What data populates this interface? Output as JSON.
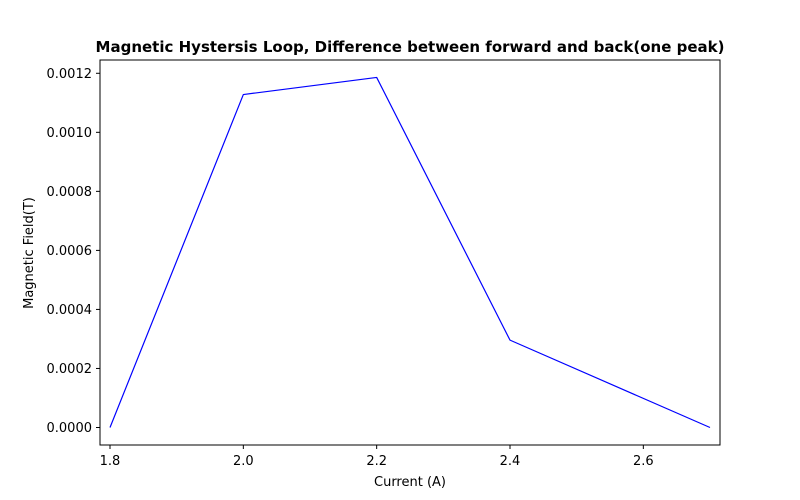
{
  "chart_data": {
    "type": "line",
    "title": "Magnetic Hystersis Loop, Difference between forward and back(one peak)",
    "xlabel": "Current (A)",
    "ylabel": "Magnetic Field(T)",
    "xlim": [
      1.785,
      2.715
    ],
    "ylim": [
      -5.93e-05,
      0.001245
    ],
    "x_ticks": [
      1.8,
      2.0,
      2.2,
      2.4,
      2.6
    ],
    "x_tick_labels": [
      "1.8",
      "2.0",
      "2.2",
      "2.4",
      "2.6"
    ],
    "y_ticks": [
      0.0,
      0.0002,
      0.0004,
      0.0006,
      0.0008,
      0.001,
      0.0012
    ],
    "y_tick_labels": [
      "0.0000",
      "0.0002",
      "0.0004",
      "0.0006",
      "0.0008",
      "0.0010",
      "0.0012"
    ],
    "grid": false,
    "series": [
      {
        "color": "#0000ff",
        "x": [
          1.8,
          2.0,
          2.2,
          2.4,
          2.7
        ],
        "y": [
          0.0,
          0.001128,
          0.001186,
          0.000296,
          0.0
        ]
      }
    ]
  }
}
